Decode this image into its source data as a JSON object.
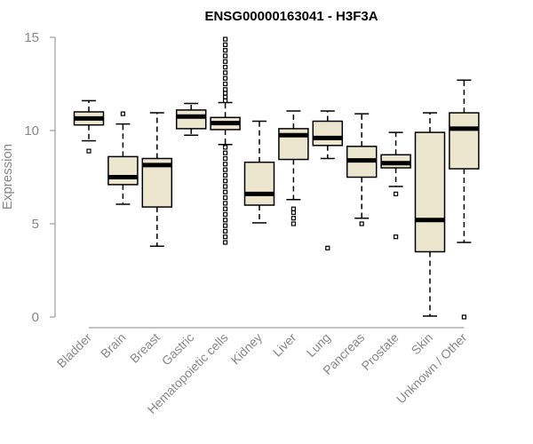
{
  "chart_data": {
    "type": "boxplot",
    "title": "ENSG00000163041 - H3F3A",
    "xlabel": "",
    "ylabel": "Expression",
    "ylim": [
      0,
      15
    ],
    "yticks": [
      0,
      5,
      10,
      15
    ],
    "colors": {
      "box_fill": "#ede6cf",
      "outline": "#000000",
      "axis": "#888888"
    },
    "categories": [
      "Bladder",
      "Brain",
      "Breast",
      "Gastric",
      "Hematopoietic cells",
      "Kidney",
      "Liver",
      "Lung",
      "Pancreas",
      "Prostate",
      "Skin",
      "Unknown / Other"
    ],
    "boxes": [
      {
        "name": "Bladder",
        "min": 9.45,
        "q1": 10.3,
        "median": 10.65,
        "q3": 11.0,
        "max": 11.6,
        "outliers": [
          8.9
        ]
      },
      {
        "name": "Brain",
        "min": 6.05,
        "q1": 7.1,
        "median": 7.5,
        "q3": 8.6,
        "max": 10.35,
        "outliers": [
          10.9
        ]
      },
      {
        "name": "Breast",
        "min": 3.8,
        "q1": 5.9,
        "median": 8.15,
        "q3": 8.5,
        "max": 10.95,
        "outliers": []
      },
      {
        "name": "Gastric",
        "min": 9.75,
        "q1": 10.1,
        "median": 10.75,
        "q3": 11.1,
        "max": 11.45,
        "outliers": []
      },
      {
        "name": "Hematopoietic cells",
        "min": 9.25,
        "q1": 10.05,
        "median": 10.4,
        "q3": 10.7,
        "max": 11.5,
        "outliers": [
          4.0,
          4.3,
          4.6,
          4.9,
          5.2,
          5.5,
          5.8,
          6.1,
          6.4,
          6.7,
          7.0,
          7.3,
          7.6,
          7.9,
          8.2,
          8.5,
          8.8,
          9.1,
          11.6,
          11.8,
          12.0,
          12.2,
          12.5,
          12.8,
          13.1,
          13.4,
          13.7,
          14.0,
          14.3,
          14.6,
          14.9
        ]
      },
      {
        "name": "Kidney",
        "min": 5.05,
        "q1": 6.0,
        "median": 6.6,
        "q3": 8.3,
        "max": 10.5,
        "outliers": []
      },
      {
        "name": "Liver",
        "min": 6.3,
        "q1": 8.45,
        "median": 9.75,
        "q3": 10.1,
        "max": 11.05,
        "outliers": [
          5.0,
          5.3,
          5.6,
          5.8
        ]
      },
      {
        "name": "Lung",
        "min": 8.5,
        "q1": 9.2,
        "median": 9.6,
        "q3": 10.5,
        "max": 11.05,
        "outliers": [
          3.7
        ]
      },
      {
        "name": "Pancreas",
        "min": 5.3,
        "q1": 7.5,
        "median": 8.4,
        "q3": 9.15,
        "max": 10.9,
        "outliers": [
          5.0
        ]
      },
      {
        "name": "Prostate",
        "min": 7.0,
        "q1": 8.0,
        "median": 8.25,
        "q3": 8.7,
        "max": 9.9,
        "outliers": [
          6.6,
          4.3
        ]
      },
      {
        "name": "Skin",
        "min": 0.05,
        "q1": 3.5,
        "median": 5.2,
        "q3": 9.9,
        "max": 10.95,
        "outliers": []
      },
      {
        "name": "Unknown / Other",
        "min": 4.0,
        "q1": 7.95,
        "median": 10.1,
        "q3": 10.95,
        "max": 12.7,
        "outliers": [
          0.0
        ]
      }
    ]
  }
}
